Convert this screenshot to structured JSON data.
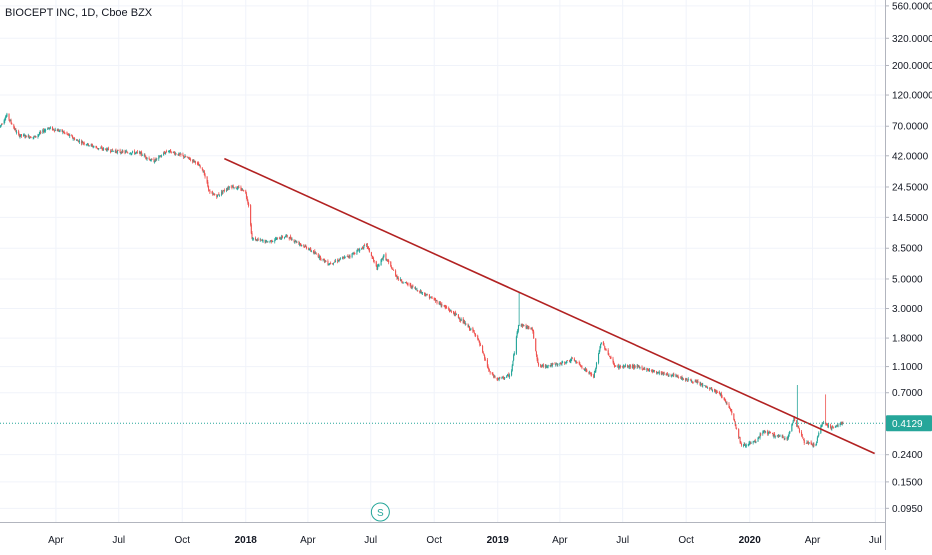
{
  "header": {
    "symbol_title": "BIOCEPT INC, 1D, Cboe BZX"
  },
  "colors": {
    "up": "#26a69a",
    "down": "#ef5350",
    "trendline": "#b22222",
    "last_price_line": "#26a69a",
    "grid": "#f0f3fa"
  },
  "price_badge": {
    "value": "0.4129"
  },
  "split_marker": {
    "label": "S"
  },
  "chart_data": {
    "type": "candlestick",
    "scale": "log",
    "ylim": [
      0.075,
      620
    ],
    "y_ticks": [
      "560.0000",
      "320.0000",
      "200.0000",
      "120.0000",
      "70.0000",
      "42.0000",
      "24.5000",
      "14.5000",
      "8.5000",
      "5.0000",
      "3.0000",
      "1.8000",
      "1.1000",
      "0.7000",
      "0.4129",
      "0.2400",
      "0.1500",
      "0.0950"
    ],
    "x_ticks": [
      "Apr",
      "Jul",
      "Oct",
      "2018",
      "Apr",
      "Jul",
      "Oct",
      "2019",
      "Apr",
      "Jul",
      "Oct",
      "2020",
      "Apr",
      "Jul"
    ],
    "x_tick_dates": [
      "2017-04-01",
      "2017-07-01",
      "2017-10-01",
      "2018-01-01",
      "2018-04-01",
      "2018-07-01",
      "2018-10-01",
      "2019-01-01",
      "2019-04-01",
      "2019-07-01",
      "2019-10-01",
      "2020-01-01",
      "2020-04-01",
      "2020-07-01"
    ],
    "xlim": [
      "2017-01-10",
      "2020-07-15"
    ],
    "last_price": 0.4129,
    "split_date": "2018-07-15",
    "price_path": [
      [
        "2017-01-10",
        70
      ],
      [
        "2017-01-20",
        85
      ],
      [
        "2017-02-05",
        60
      ],
      [
        "2017-03-01",
        58
      ],
      [
        "2017-03-20",
        68
      ],
      [
        "2017-04-10",
        64
      ],
      [
        "2017-05-01",
        55
      ],
      [
        "2017-06-01",
        48
      ],
      [
        "2017-07-01",
        45
      ],
      [
        "2017-08-01",
        44
      ],
      [
        "2017-08-20",
        38
      ],
      [
        "2017-09-10",
        46
      ],
      [
        "2017-10-01",
        42
      ],
      [
        "2017-10-20",
        38
      ],
      [
        "2017-11-01",
        32
      ],
      [
        "2017-11-10",
        22
      ],
      [
        "2017-11-20",
        21
      ],
      [
        "2017-12-10",
        25
      ],
      [
        "2017-12-31",
        23
      ],
      [
        "2018-01-05",
        18
      ],
      [
        "2018-01-10",
        10
      ],
      [
        "2018-02-01",
        9.5
      ],
      [
        "2018-03-01",
        10.5
      ],
      [
        "2018-04-01",
        8.5
      ],
      [
        "2018-05-01",
        6.5
      ],
      [
        "2018-06-01",
        7.5
      ],
      [
        "2018-06-25",
        9.0
      ],
      [
        "2018-07-10",
        6.0
      ],
      [
        "2018-07-20",
        7.5
      ],
      [
        "2018-08-10",
        5.0
      ],
      [
        "2018-09-01",
        4.3
      ],
      [
        "2018-10-01",
        3.5
      ],
      [
        "2018-11-01",
        2.7
      ],
      [
        "2018-12-01",
        1.9
      ],
      [
        "2018-12-20",
        1.0
      ],
      [
        "2018-12-31",
        0.88
      ],
      [
        "2019-01-20",
        0.95
      ],
      [
        "2019-01-31",
        2.3
      ],
      [
        "2019-02-20",
        2.1
      ],
      [
        "2019-03-01",
        1.1
      ],
      [
        "2019-04-01",
        1.15
      ],
      [
        "2019-04-20",
        1.25
      ],
      [
        "2019-05-20",
        0.92
      ],
      [
        "2019-05-31",
        1.7
      ],
      [
        "2019-06-20",
        1.1
      ],
      [
        "2019-07-20",
        1.1
      ],
      [
        "2019-08-20",
        1.0
      ],
      [
        "2019-09-20",
        0.92
      ],
      [
        "2019-10-20",
        0.82
      ],
      [
        "2019-11-20",
        0.68
      ],
      [
        "2019-12-05",
        0.52
      ],
      [
        "2019-12-20",
        0.28
      ],
      [
        "2020-01-10",
        0.3
      ],
      [
        "2020-01-20",
        0.36
      ],
      [
        "2020-02-10",
        0.33
      ],
      [
        "2020-02-25",
        0.32
      ],
      [
        "2020-03-05",
        0.45
      ],
      [
        "2020-03-20",
        0.3
      ],
      [
        "2020-04-05",
        0.28
      ],
      [
        "2020-04-15",
        0.42
      ],
      [
        "2020-05-01",
        0.38
      ],
      [
        "2020-05-15",
        0.42
      ]
    ],
    "spikes": [
      [
        "2017-01-14",
        95
      ],
      [
        "2017-11-25",
        38
      ],
      [
        "2018-07-01",
        12
      ],
      [
        "2019-02-01",
        4.0
      ],
      [
        "2019-06-01",
        2.2
      ],
      [
        "2020-03-10",
        0.8
      ],
      [
        "2020-04-20",
        0.68
      ]
    ],
    "trendline": {
      "start": [
        "2017-12-01",
        40
      ],
      "end": [
        "2020-06-30",
        0.245
      ]
    }
  }
}
